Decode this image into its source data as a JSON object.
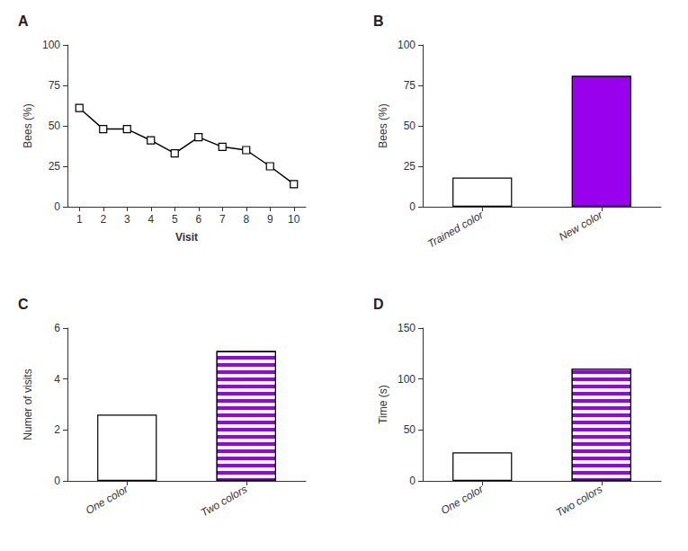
{
  "chart_data": [
    {
      "type": "line",
      "title": "A",
      "x": [
        1,
        2,
        3,
        4,
        5,
        6,
        7,
        8,
        9,
        10
      ],
      "values": [
        61,
        48,
        48,
        41,
        33,
        43,
        37,
        35,
        25,
        14
      ],
      "xlabel": "Visit",
      "ylabel": "Bees (%)",
      "xlim": [
        0.5,
        10.5
      ],
      "xticks": [
        1,
        2,
        3,
        4,
        5,
        6,
        7,
        8,
        9,
        10
      ],
      "ylim": [
        0,
        100
      ],
      "yticks": [
        0,
        25,
        50,
        75,
        100
      ],
      "color": "#000000",
      "marker": "square",
      "grid": false
    },
    {
      "type": "bar",
      "title": "B",
      "categories": [
        "Trained color",
        "New color"
      ],
      "values": [
        18,
        81
      ],
      "colors": [
        "#ffffff",
        "#9900ee"
      ],
      "ylabel": "Bees (%)",
      "ylim": [
        0,
        100
      ],
      "yticks": [
        0,
        25,
        50,
        75,
        100
      ],
      "grid": false
    },
    {
      "type": "bar",
      "title": "C",
      "categories": [
        "One color",
        "Two colors"
      ],
      "values": [
        2.6,
        5.1
      ],
      "colors": [
        "#ffffff",
        "#9900ee"
      ],
      "ylabel": "Numer of visits",
      "ylim": [
        0,
        6
      ],
      "yticks": [
        0,
        2,
        4,
        6
      ],
      "grid": false
    },
    {
      "type": "bar",
      "title": "D",
      "categories": [
        "One color",
        "Two colors"
      ],
      "values": [
        28,
        110
      ],
      "colors": [
        "#ffffff",
        "#9900ee"
      ],
      "ylabel": "Time (s)",
      "ylim": [
        0,
        150
      ],
      "yticks": [
        0,
        50,
        100,
        150
      ],
      "grid": false
    }
  ]
}
